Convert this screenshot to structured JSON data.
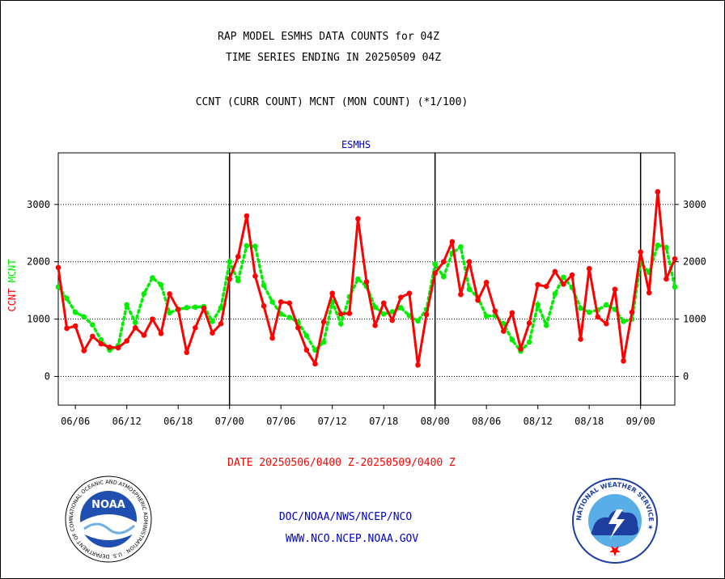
{
  "header": {
    "title_line1": "RAP MODEL ESMHS DATA COUNTS for 04Z",
    "title_line2": "TIME SERIES ENDING IN 20250509 04Z",
    "subtitle": "CCNT (CURR COUNT) MCNT (MON COUNT) (*1/100)"
  },
  "footer": {
    "date_range": "DATE 20250506/0400 Z-20250509/0400 Z",
    "org_path": "DOC/NOAA/NWS/NCEP/NCO",
    "website": "WWW.NCO.NCEP.NOAA.GOV"
  },
  "logos": {
    "noaa_center": "NOAA",
    "noaa_ring": "NATIONAL OCEANIC AND ATMOSPHERIC ADMINISTRATION · U.S. DEPARTMENT OF COMMERCE ·",
    "nws_ring": "NATIONAL WEATHER SERVICE ★"
  },
  "colors": {
    "ccnt": "#ff0000",
    "mcnt": "#00ee00",
    "panel_title": "#0000cc",
    "footer_red": "#ff0000",
    "footer_blue": "#0000cc"
  },
  "chart_data": {
    "type": "line",
    "panel_title": "ESMHS",
    "ylabel_left": [
      "CCNT",
      "MCNT"
    ],
    "ylim": [
      -500,
      3900
    ],
    "yticks": [
      0,
      1000,
      2000,
      3000
    ],
    "ytick_labels": [
      "0",
      "1000",
      "2000",
      "3000"
    ],
    "grid_y": [
      0,
      1000,
      2000,
      3000
    ],
    "x_range": [
      0,
      72
    ],
    "x_ticks": [
      {
        "x": 2,
        "label": "06/06"
      },
      {
        "x": 8,
        "label": "06/12"
      },
      {
        "x": 14,
        "label": "06/18"
      },
      {
        "x": 20,
        "label": "07/00"
      },
      {
        "x": 26,
        "label": "07/06"
      },
      {
        "x": 32,
        "label": "07/12"
      },
      {
        "x": 38,
        "label": "07/18"
      },
      {
        "x": 44,
        "label": "08/00"
      },
      {
        "x": 50,
        "label": "08/06"
      },
      {
        "x": 56,
        "label": "08/12"
      },
      {
        "x": 62,
        "label": "08/18"
      },
      {
        "x": 68,
        "label": "09/00"
      }
    ],
    "day_dividers": [
      20,
      44,
      68
    ],
    "x": [
      0,
      1,
      2,
      3,
      4,
      5,
      6,
      7,
      8,
      9,
      10,
      11,
      12,
      13,
      14,
      15,
      16,
      17,
      18,
      19,
      20,
      21,
      22,
      23,
      24,
      25,
      26,
      27,
      28,
      29,
      30,
      31,
      32,
      33,
      34,
      35,
      36,
      37,
      38,
      39,
      40,
      41,
      42,
      43,
      44,
      45,
      46,
      47,
      48,
      49,
      50,
      51,
      52,
      53,
      54,
      55,
      56,
      57,
      58,
      59,
      60,
      61,
      62,
      63,
      64,
      65,
      66,
      67,
      68,
      69,
      70,
      71,
      72
    ],
    "series": [
      {
        "name": "CCNT",
        "values": [
          1900,
          840,
          880,
          450,
          700,
          570,
          510,
          500,
          620,
          850,
          720,
          1000,
          750,
          1440,
          1170,
          420,
          850,
          1190,
          760,
          920,
          1700,
          2090,
          2800,
          1750,
          1230,
          670,
          1300,
          1280,
          850,
          460,
          220,
          950,
          1450,
          1090,
          1100,
          2750,
          1650,
          890,
          1280,
          980,
          1380,
          1450,
          200,
          1080,
          1800,
          2000,
          2350,
          1430,
          2000,
          1330,
          1640,
          1140,
          790,
          1110,
          480,
          930,
          1600,
          1570,
          1830,
          1610,
          1770,
          650,
          1880,
          1040,
          920,
          1520,
          270,
          1120,
          2170,
          1460,
          3220,
          1700,
          2050
        ]
      },
      {
        "name": "MCNT",
        "values": [
          1560,
          1360,
          1120,
          1040,
          900,
          640,
          460,
          540,
          1250,
          940,
          1440,
          1720,
          1600,
          1110,
          1170,
          1200,
          1210,
          1220,
          960,
          1200,
          2000,
          1670,
          2280,
          2270,
          1590,
          1300,
          1090,
          1030,
          950,
          710,
          460,
          600,
          1300,
          920,
          1390,
          1700,
          1570,
          1210,
          1090,
          1130,
          1200,
          1060,
          970,
          1170,
          1960,
          1740,
          2150,
          2260,
          1520,
          1380,
          1050,
          1060,
          920,
          640,
          440,
          600,
          1250,
          890,
          1440,
          1730,
          1550,
          1190,
          1120,
          1160,
          1250,
          1170,
          960,
          1000,
          1990,
          1810,
          2290,
          2250,
          1560
        ]
      }
    ]
  }
}
